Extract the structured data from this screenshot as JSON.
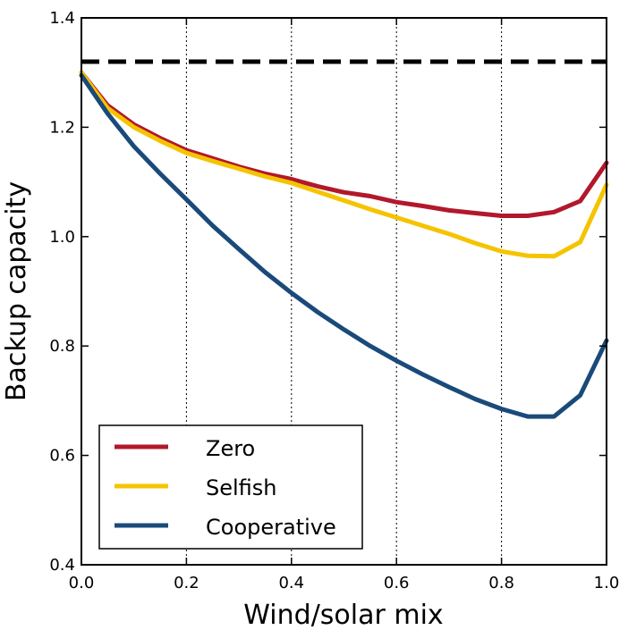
{
  "chart_data": {
    "type": "line",
    "title": "",
    "xlabel": "Wind/solar mix",
    "ylabel": "Backup capacity",
    "xlim": [
      0.0,
      1.0
    ],
    "ylim": [
      0.4,
      1.4
    ],
    "xticks": [
      "0.0",
      "0.2",
      "0.4",
      "0.6",
      "0.8",
      "1.0"
    ],
    "yticks": [
      "0.4",
      "0.6",
      "0.8",
      "1.0",
      "1.2",
      "1.4"
    ],
    "vertical_gridlines_x": [
      0.2,
      0.4,
      0.6,
      0.8
    ],
    "horizontal_reference_y": 1.32,
    "legend_location": "lower-left",
    "x": [
      0.0,
      0.05,
      0.1,
      0.15,
      0.2,
      0.25,
      0.3,
      0.35,
      0.4,
      0.45,
      0.5,
      0.55,
      0.6,
      0.65,
      0.7,
      0.75,
      0.8,
      0.85,
      0.9,
      0.95,
      1.0
    ],
    "series": [
      {
        "name": "Zero",
        "color": "#b2182b",
        "values": [
          1.3,
          1.24,
          1.205,
          1.18,
          1.158,
          1.143,
          1.128,
          1.115,
          1.105,
          1.092,
          1.081,
          1.074,
          1.063,
          1.056,
          1.048,
          1.043,
          1.038,
          1.038,
          1.045,
          1.065,
          1.135
        ]
      },
      {
        "name": "Selfish",
        "color": "#f5c400",
        "values": [
          1.3,
          1.235,
          1.2,
          1.175,
          1.153,
          1.138,
          1.124,
          1.11,
          1.098,
          1.082,
          1.066,
          1.05,
          1.035,
          1.02,
          1.005,
          0.988,
          0.973,
          0.965,
          0.964,
          0.99,
          1.095
        ]
      },
      {
        "name": "Cooperative",
        "color": "#1a4a7a",
        "values": [
          1.295,
          1.225,
          1.165,
          1.115,
          1.068,
          1.02,
          0.977,
          0.935,
          0.897,
          0.862,
          0.83,
          0.8,
          0.773,
          0.748,
          0.725,
          0.703,
          0.685,
          0.671,
          0.671,
          0.71,
          0.81
        ]
      }
    ]
  }
}
